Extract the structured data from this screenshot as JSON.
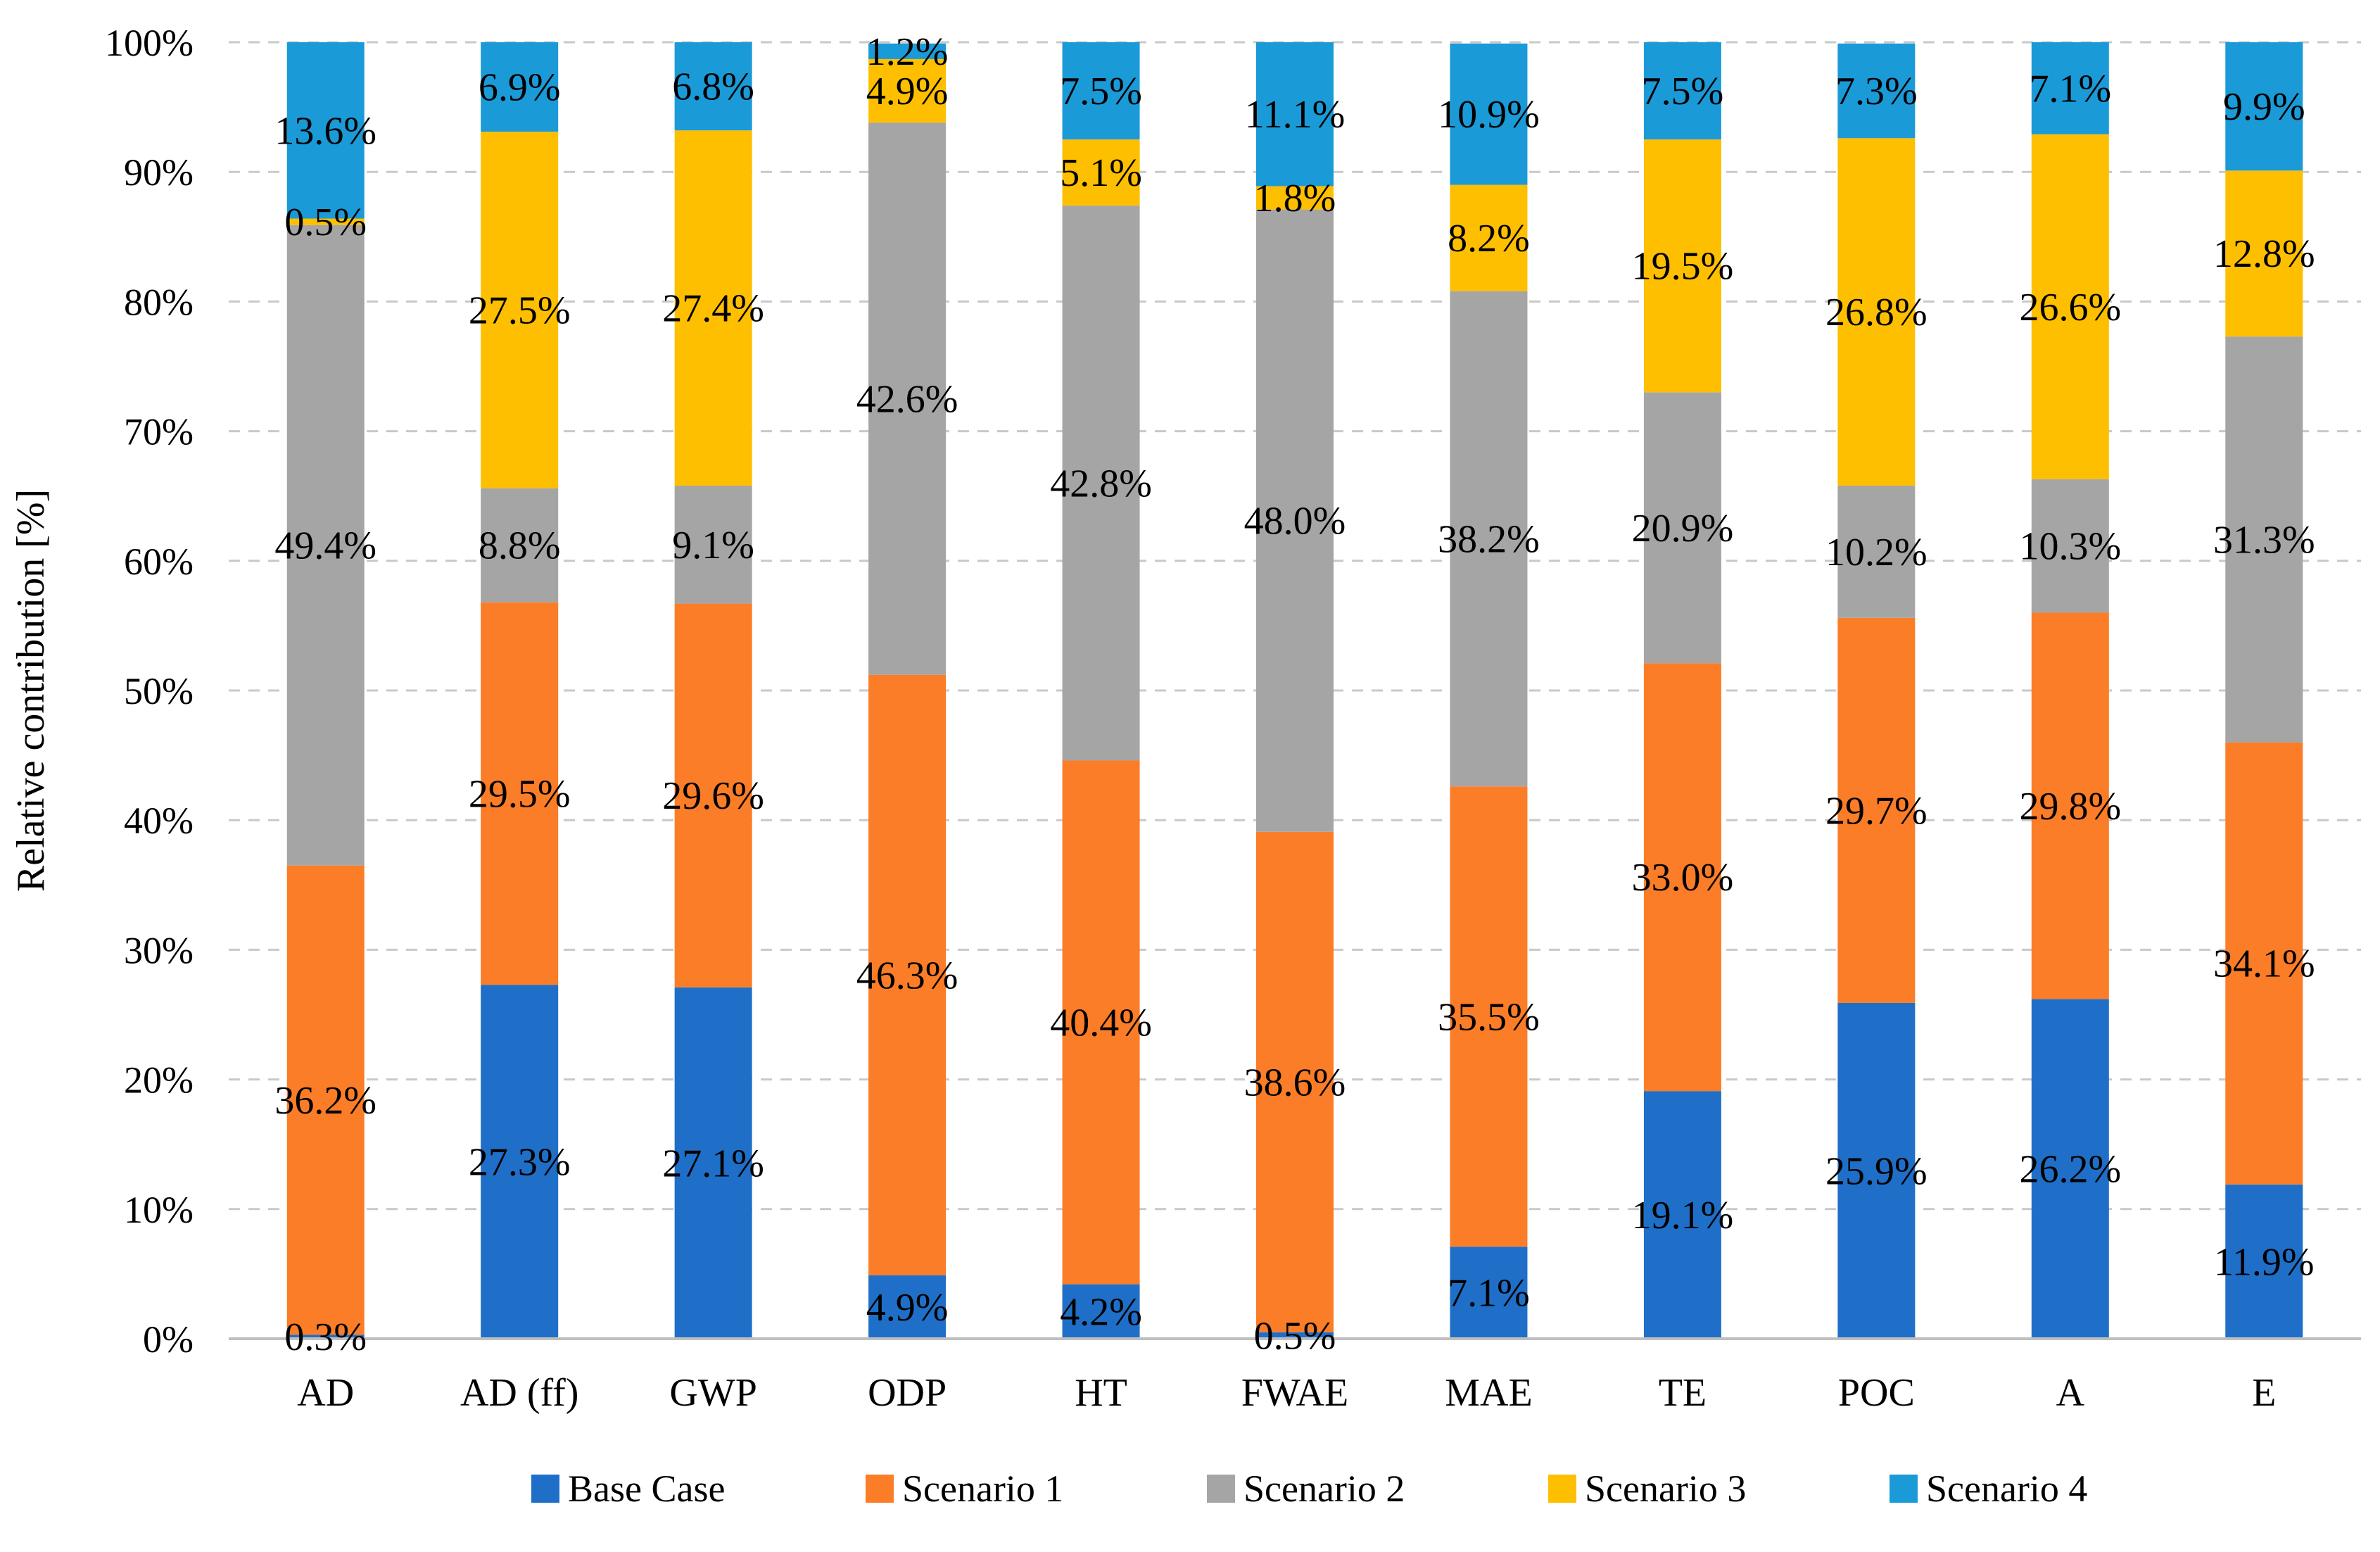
{
  "chart_data": {
    "type": "bar",
    "stacked": true,
    "normalized": true,
    "title": "",
    "xlabel": "",
    "ylabel": "Relative contribution [%]",
    "ylim": [
      0,
      100
    ],
    "ytick_labels": [
      "0%",
      "10%",
      "20%",
      "30%",
      "40%",
      "50%",
      "60%",
      "70%",
      "80%",
      "90%",
      "100%"
    ],
    "grid": true,
    "legend_position": "bottom",
    "categories": [
      "AD",
      "AD (ff)",
      "GWP",
      "ODP",
      "HT",
      "FWAE",
      "MAE",
      "TE",
      "POC",
      "A",
      "E"
    ],
    "series": [
      {
        "name": "Base Case",
        "color": "#1f6fc8",
        "values": [
          0.3,
          27.3,
          27.1,
          4.9,
          4.2,
          0.5,
          7.1,
          19.1,
          25.9,
          26.2,
          11.9
        ]
      },
      {
        "name": "Scenario 1",
        "color": "#fb7d27",
        "values": [
          36.2,
          29.5,
          29.6,
          46.3,
          40.4,
          38.6,
          35.5,
          33.0,
          29.7,
          29.8,
          34.1
        ]
      },
      {
        "name": "Scenario 2",
        "color": "#a5a5a5",
        "values": [
          49.4,
          8.8,
          9.1,
          42.6,
          42.8,
          48.0,
          38.2,
          20.9,
          10.2,
          10.3,
          31.3
        ]
      },
      {
        "name": "Scenario 3",
        "color": "#fdbf00",
        "values": [
          0.5,
          27.5,
          27.4,
          4.9,
          5.1,
          1.8,
          8.2,
          19.5,
          26.8,
          26.6,
          12.8
        ]
      },
      {
        "name": "Scenario 4",
        "color": "#1b9ad8",
        "values": [
          13.6,
          6.9,
          6.8,
          1.2,
          7.5,
          11.1,
          10.9,
          7.5,
          7.3,
          7.1,
          9.9
        ]
      }
    ],
    "data_labels": [
      [
        "0.3%",
        "27.3%",
        "27.1%",
        "4.9%",
        "4.2%",
        "0.5%",
        "7.1%",
        "19.1%",
        "25.9%",
        "26.2%",
        "11.9%"
      ],
      [
        "36.2%",
        "29.5%",
        "29.6%",
        "46.3%",
        "40.4%",
        "38.6%",
        "35.5%",
        "33.0%",
        "29.7%",
        "29.8%",
        "34.1%"
      ],
      [
        "49.4%",
        "8.8%",
        "9.1%",
        "42.6%",
        "42.8%",
        "48.0%",
        "38.2%",
        "20.9%",
        "10.2%",
        "10.3%",
        "31.3%"
      ],
      [
        "0.5%",
        "27.5%",
        "27.4%",
        "4.9%",
        "5.1%",
        "1.8%",
        "8.2%",
        "19.5%",
        "26.8%",
        "26.6%",
        "12.8%"
      ],
      [
        "13.6%",
        "6.9%",
        "6.8%",
        "1.2%",
        "7.5%",
        "11.1%",
        "10.9%",
        "7.5%",
        "7.3%",
        "7.1%",
        "9.9%"
      ]
    ]
  }
}
